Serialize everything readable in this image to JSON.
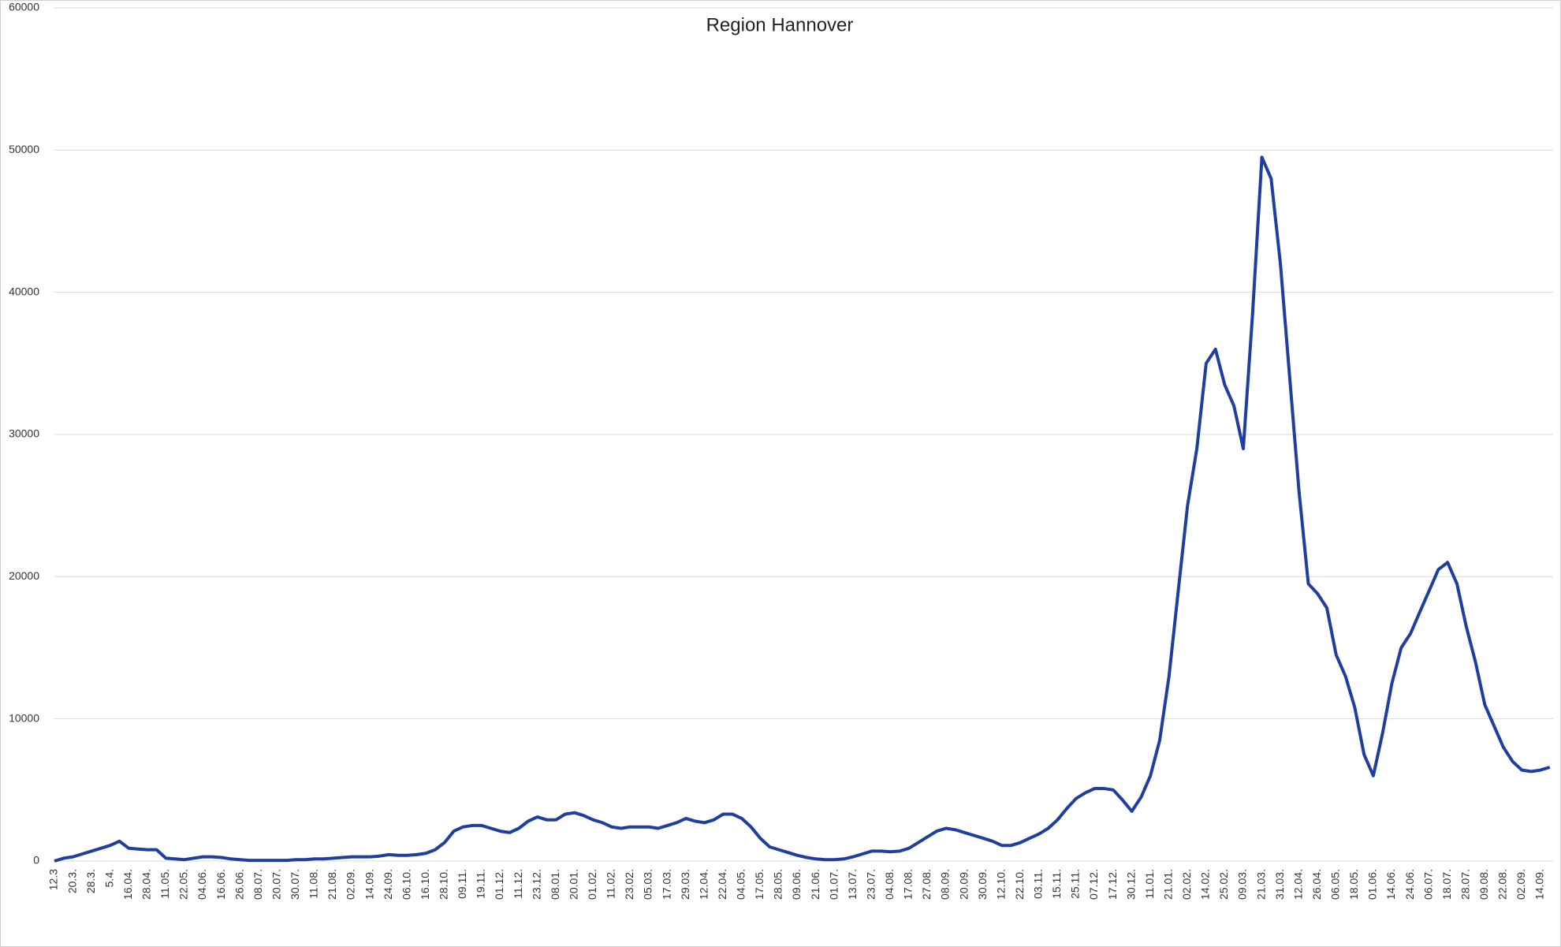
{
  "chart_data": {
    "type": "line",
    "title": "Region Hannover",
    "categories": [
      "12.3",
      null,
      "20.3.",
      null,
      "28.3.",
      null,
      "5.4.",
      null,
      "16.04.",
      null,
      "28.04.",
      null,
      "11.05.",
      null,
      "22.05.",
      null,
      "04.06.",
      null,
      "16.06.",
      null,
      "26.06.",
      null,
      "08.07.",
      null,
      "20.07.",
      null,
      "30.07.",
      null,
      "11.08.",
      null,
      "21.08.",
      null,
      "02.09.",
      null,
      "14.09.",
      null,
      "24.09.",
      null,
      "06.10.",
      null,
      "16.10.",
      null,
      "28.10.",
      null,
      "09.11.",
      null,
      "19.11.",
      null,
      "01.12.",
      null,
      "11.12.",
      null,
      "23.12.",
      null,
      "08.01.",
      null,
      "20.01.",
      null,
      "01.02.",
      null,
      "11.02.",
      null,
      "23.02.",
      null,
      "05.03.",
      null,
      "17.03.",
      null,
      "29.03.",
      null,
      "12.04.",
      null,
      "22.04.",
      null,
      "04.05.",
      null,
      "17.05.",
      null,
      "28.05.",
      null,
      "09.06.",
      null,
      "21.06.",
      null,
      "01.07.",
      null,
      "13.07.",
      null,
      "23.07.",
      null,
      "04.08.",
      null,
      "17.08.",
      null,
      "27.08.",
      null,
      "08.09.",
      null,
      "20.09.",
      null,
      "30.09.",
      null,
      "12.10.",
      null,
      "22.10.",
      null,
      "03.11.",
      null,
      "15.11.",
      null,
      "25.11.",
      null,
      "07.12.",
      null,
      "17.12.",
      null,
      "30.12.",
      null,
      "11.01.",
      null,
      "21.01.",
      null,
      "02.02.",
      null,
      "14.02.",
      null,
      "25.02.",
      null,
      "09.03.",
      null,
      "21.03.",
      null,
      "31.03.",
      null,
      "12.04.",
      null,
      "26.04.",
      null,
      "06.05.",
      null,
      "18.05.",
      null,
      "01.06.",
      null,
      "14.06.",
      null,
      "24.06.",
      null,
      "06.07.",
      null,
      "18.07.",
      null,
      "28.07.",
      null,
      "09.08.",
      null,
      "22.08.",
      null,
      "02.09.",
      null,
      "14.09.",
      null
    ],
    "values": [
      0,
      200,
      300,
      500,
      700,
      900,
      1100,
      1400,
      900,
      850,
      800,
      800,
      200,
      150,
      100,
      200,
      300,
      300,
      250,
      150,
      100,
      50,
      50,
      50,
      50,
      50,
      100,
      100,
      150,
      150,
      200,
      250,
      300,
      300,
      300,
      350,
      450,
      400,
      400,
      450,
      550,
      800,
      1300,
      2100,
      2400,
      2500,
      2500,
      2300,
      2100,
      2000,
      2300,
      2800,
      3100,
      2900,
      2900,
      3300,
      3400,
      3200,
      2900,
      2700,
      2400,
      2300,
      2400,
      2400,
      2400,
      2300,
      2500,
      2700,
      3000,
      2800,
      2700,
      2900,
      3300,
      3300,
      3000,
      2400,
      1600,
      1000,
      800,
      600,
      400,
      250,
      150,
      100,
      100,
      150,
      300,
      500,
      700,
      700,
      650,
      700,
      900,
      1300,
      1700,
      2100,
      2300,
      2200,
      2000,
      1800,
      1600,
      1400,
      1100,
      1100,
      1300,
      1600,
      1900,
      2300,
      2900,
      3700,
      4400,
      4800,
      5100,
      5100,
      5000,
      4300,
      3500,
      4500,
      6000,
      8500,
      13000,
      19000,
      25000,
      29000,
      35000,
      36000,
      33500,
      32000,
      29000,
      38500,
      49500,
      48000,
      42000,
      34000,
      26000,
      19500,
      18800,
      17800,
      14500,
      13000,
      10800,
      7500,
      6000,
      9000,
      12500,
      15000,
      16000,
      17500,
      19000,
      20500,
      21000,
      19500,
      16500,
      14000,
      11000,
      9500,
      8000,
      7000,
      6400,
      6300,
      6400,
      6600
    ],
    "color": "#1f3f9f",
    "ylim": [
      0,
      60000
    ],
    "yticks": [
      0,
      10000,
      20000,
      30000,
      40000,
      50000,
      60000
    ],
    "grid": true
  }
}
